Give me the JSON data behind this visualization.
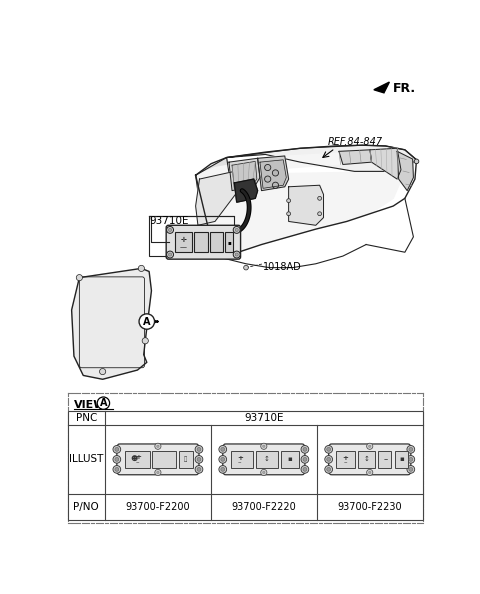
{
  "bg_color": "#ffffff",
  "fr_label": "FR.",
  "ref_label": "REF.84-847",
  "part_label_93710E": "93710E",
  "part_label_1018AD": "1018AD",
  "view_label": "VIEW",
  "table_pnc": "PNC",
  "table_illust": "ILLUST",
  "table_pno": "P/NO",
  "pnc_value": "93710E",
  "pno_values": [
    "93700-F2200",
    "93700-F2220",
    "93700-F2230"
  ],
  "dash_border_color": "#777777",
  "line_color": "#222222",
  "table_border_color": "#444444",
  "gray_fill": "#e8e8e8",
  "dark_gray": "#555555"
}
